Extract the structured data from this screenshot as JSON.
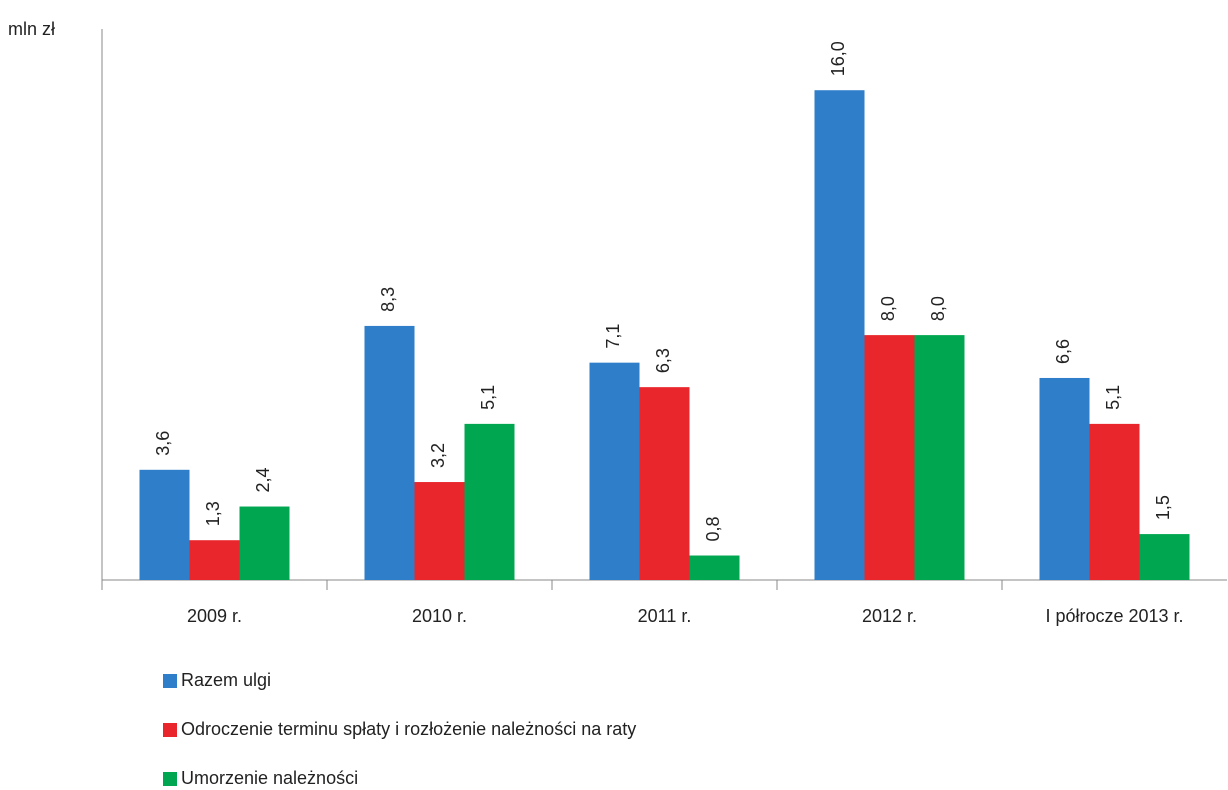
{
  "chart_data": {
    "type": "bar",
    "y_label": "mln zł",
    "categories": [
      "2009 r.",
      "2010 r.",
      "2011 r.",
      "2012 r.",
      "I półrocze 2013 r."
    ],
    "series": [
      {
        "name": "Razem ulgi",
        "color": "#2e7ec9",
        "values": [
          3.6,
          8.3,
          7.1,
          16.0,
          6.6
        ],
        "value_labels": [
          "3,6",
          "8,3",
          "7,1",
          "16,0",
          "6,6"
        ]
      },
      {
        "name": "Odroczenie terminu spłaty i rozłożenie należności na raty",
        "color": "#e8262b",
        "values": [
          1.3,
          3.2,
          6.3,
          8.0,
          5.1
        ],
        "value_labels": [
          "1,3",
          "3,2",
          "6,3",
          "8,0",
          "5,1"
        ]
      },
      {
        "name": "Umorzenie należności",
        "color": "#00a650",
        "values": [
          2.4,
          5.1,
          0.8,
          8.0,
          1.5
        ],
        "value_labels": [
          "2,4",
          "5,1",
          "0,8",
          "8,0",
          "1,5"
        ]
      }
    ],
    "ylim": [
      0,
      18
    ]
  }
}
